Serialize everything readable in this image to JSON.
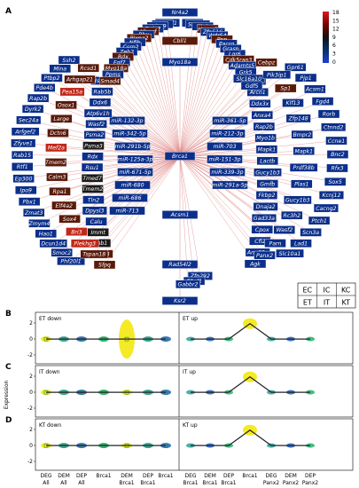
{
  "panel_a": {
    "letter": "A",
    "hub": "Brca1",
    "colorbar": {
      "ticks": [
        "18",
        "15",
        "12",
        "9",
        "6",
        "3",
        "0"
      ],
      "stops": [
        "#d7191c",
        "#7a0000",
        "#111111",
        "#08306b",
        "#1f3fd0"
      ]
    },
    "colors": {
      "blue": "#0b2f8a",
      "navy": "#0c1f50",
      "dark": "#1a1a1a",
      "brown": "#5a1a0a",
      "red": "#c0281a",
      "link": "#d96a6a"
    },
    "spoke_top": [
      "Nr4a2",
      "Cbll1",
      "Myo18a"
    ],
    "spoke_bottom": [
      "Acsm1",
      "Rad54l2",
      "Ksr2"
    ],
    "inner_left": [
      "miR-132-3p",
      "miR-342-5p",
      "miR-291b-5p",
      "miR-125a-3p",
      "miR-671-5p",
      "miR-680",
      "miR-686",
      "miR-713"
    ],
    "inner_right": [
      "miR-361-5p",
      "miR-212-3p",
      "miR-703",
      "miR-151-3p",
      "miR-339-3p",
      "miR-291a-5p"
    ],
    "mid_left": [
      {
        "t": "Hspa12b",
        "c": "blue"
      },
      {
        "t": "Rab5b",
        "c": "blue"
      },
      {
        "t": "Ddx6",
        "c": "blue"
      },
      {
        "t": "Atp6v1h",
        "c": "blue"
      },
      {
        "t": "Wasf2",
        "c": "blue"
      },
      {
        "t": "Psma2",
        "c": "blue"
      },
      {
        "t": "Psma3",
        "c": "dark"
      },
      {
        "t": "Rdx",
        "c": "blue"
      },
      {
        "t": "Rsu1",
        "c": "blue"
      },
      {
        "t": "Tmed7",
        "c": "dark"
      },
      {
        "t": "Tmem2",
        "c": "dark"
      },
      {
        "t": "Tln2",
        "c": "blue"
      },
      {
        "t": "Dpysl3",
        "c": "blue"
      },
      {
        "t": "Calu",
        "c": "blue"
      },
      {
        "t": "Immt",
        "c": "dark"
      },
      {
        "t": "Gnb1",
        "c": "dark"
      },
      {
        "t": "Actr3",
        "c": "brown"
      },
      {
        "t": "Sfpq",
        "c": "brown"
      }
    ],
    "mid_right": [
      {
        "t": "Gpd2",
        "c": "blue"
      },
      {
        "t": "Arcn1",
        "c": "blue"
      },
      {
        "t": "Ddx3x",
        "c": "blue"
      },
      {
        "t": "Anxa4",
        "c": "blue"
      },
      {
        "t": "Rap2b",
        "c": "blue"
      },
      {
        "t": "Myo1b",
        "c": "blue"
      },
      {
        "t": "Mapk1",
        "c": "blue"
      },
      {
        "t": "Lactb",
        "c": "blue"
      },
      {
        "t": "Gucy1b3",
        "c": "blue"
      },
      {
        "t": "Gmfb",
        "c": "blue"
      },
      {
        "t": "Fkbp2",
        "c": "blue"
      },
      {
        "t": "Dnaja2",
        "c": "blue"
      },
      {
        "t": "Gad33a",
        "c": "blue"
      },
      {
        "t": "Cpox",
        "c": "blue"
      },
      {
        "t": "Cfl2",
        "c": "blue"
      },
      {
        "t": "Anp32a",
        "c": "blue"
      },
      {
        "t": "Agk",
        "c": "blue"
      }
    ],
    "top_left_arc": [
      {
        "t": "Tmeff1",
        "c": "blue"
      },
      {
        "t": "Qk",
        "c": "blue"
      },
      {
        "t": "Hdac9",
        "c": "blue"
      },
      {
        "t": "Bnip2",
        "c": "blue"
      },
      {
        "t": "Hbegf",
        "c": "brown"
      },
      {
        "t": "Bbx",
        "c": "blue"
      },
      {
        "t": "Pixna2",
        "c": "brown"
      },
      {
        "t": "Nfib",
        "c": "blue"
      },
      {
        "t": "Csrp2",
        "c": "blue"
      },
      {
        "t": "Zeb2",
        "c": "blue"
      },
      {
        "t": "Rdx",
        "c": "brown"
      },
      {
        "t": "Fgf7",
        "c": "blue"
      },
      {
        "t": "Myo18a",
        "c": "brown"
      },
      {
        "t": "Ppms",
        "c": "blue"
      },
      {
        "t": "Smad4",
        "c": "brown"
      }
    ],
    "top_right_arc": [
      {
        "t": "Erg",
        "c": "blue"
      },
      {
        "t": "Srgap3",
        "c": "blue"
      },
      {
        "t": "Tln2",
        "c": "blue"
      },
      {
        "t": "Hmga2",
        "c": "brown"
      },
      {
        "t": "Zfp516",
        "c": "blue"
      },
      {
        "t": "Wdr54",
        "c": "blue"
      },
      {
        "t": "Pnn",
        "c": "brown"
      },
      {
        "t": "Pacrg",
        "c": "blue"
      },
      {
        "t": "Grasp",
        "c": "blue"
      },
      {
        "t": "Lgr6",
        "c": "blue"
      },
      {
        "t": "Cdk5rap3",
        "c": "brown"
      },
      {
        "t": "Adamts5",
        "c": "blue"
      },
      {
        "t": "Grk5",
        "c": "blue"
      },
      {
        "t": "Slc16a10",
        "c": "blue"
      },
      {
        "t": "Gdf5",
        "c": "blue"
      }
    ],
    "outer_left": [
      {
        "t": "Ssh2",
        "c": "blue"
      },
      {
        "t": "Mina",
        "c": "blue"
      },
      {
        "t": "Ptbp2",
        "c": "blue"
      },
      {
        "t": "Pde4b",
        "c": "blue"
      },
      {
        "t": "Rap2b",
        "c": "blue"
      },
      {
        "t": "Dyrk2",
        "c": "blue"
      },
      {
        "t": "Sec24a",
        "c": "blue"
      },
      {
        "t": "Arfgef2",
        "c": "blue"
      },
      {
        "t": "Zfyve1",
        "c": "blue"
      },
      {
        "t": "Rab15",
        "c": "blue"
      },
      {
        "t": "Rtf1",
        "c": "blue"
      },
      {
        "t": "Ep300",
        "c": "blue"
      },
      {
        "t": "Ipo9",
        "c": "blue"
      },
      {
        "t": "Pbx1",
        "c": "blue"
      },
      {
        "t": "Zmat3",
        "c": "blue"
      },
      {
        "t": "Zmym4",
        "c": "blue"
      },
      {
        "t": "Hao1",
        "c": "blue"
      },
      {
        "t": "Dcun1d4",
        "c": "blue"
      },
      {
        "t": "Smoc2",
        "c": "blue"
      },
      {
        "t": "Phf20l1",
        "c": "blue"
      }
    ],
    "outer_left2": [
      {
        "t": "Rcsd1",
        "c": "brown"
      },
      {
        "t": "Arhgap21",
        "c": "brown"
      },
      {
        "t": "Pea15a",
        "c": "red"
      },
      {
        "t": "Osox1",
        "c": "brown"
      },
      {
        "t": "Large",
        "c": "brown"
      },
      {
        "t": "Dctn6",
        "c": "brown"
      },
      {
        "t": "Mef2a",
        "c": "red"
      },
      {
        "t": "Tmem2",
        "c": "brown"
      },
      {
        "t": "Calm3",
        "c": "brown"
      },
      {
        "t": "Rpa1",
        "c": "brown"
      },
      {
        "t": "Elf4a2",
        "c": "brown"
      },
      {
        "t": "Sox4",
        "c": "brown"
      },
      {
        "t": "Bri3",
        "c": "red"
      },
      {
        "t": "Plekhg3",
        "c": "red"
      },
      {
        "t": "Tspan18",
        "c": "brown"
      }
    ],
    "outer_right": [
      {
        "t": "Gpr61",
        "c": "blue"
      },
      {
        "t": "Pjp1",
        "c": "blue"
      },
      {
        "t": "Acsm1",
        "c": "blue"
      },
      {
        "t": "Fgd4",
        "c": "blue"
      },
      {
        "t": "Rorb",
        "c": "blue"
      },
      {
        "t": "Ctnnd2",
        "c": "blue"
      },
      {
        "t": "Ccne1",
        "c": "blue"
      },
      {
        "t": "Bnc2",
        "c": "blue"
      },
      {
        "t": "Rfx3",
        "c": "blue"
      },
      {
        "t": "Sox5",
        "c": "blue"
      },
      {
        "t": "Kcnj12",
        "c": "blue"
      },
      {
        "t": "Cacng2",
        "c": "blue"
      },
      {
        "t": "Ptch1",
        "c": "blue"
      },
      {
        "t": "Scn3a",
        "c": "blue"
      },
      {
        "t": "Lad1",
        "c": "blue"
      },
      {
        "t": "Slc10a1",
        "c": "blue"
      }
    ],
    "outer_right2": [
      {
        "t": "Cebpz",
        "c": "brown"
      },
      {
        "t": "Pik3ip1",
        "c": "blue"
      },
      {
        "t": "Sp1",
        "c": "brown"
      },
      {
        "t": "Klf13",
        "c": "blue"
      },
      {
        "t": "Zfp148",
        "c": "blue"
      },
      {
        "t": "Bmpr2",
        "c": "blue"
      },
      {
        "t": "Mapk1",
        "c": "blue"
      },
      {
        "t": "Prdf38b",
        "c": "blue"
      },
      {
        "t": "Plas1",
        "c": "blue"
      },
      {
        "t": "Gucy1b3",
        "c": "blue"
      },
      {
        "t": "Rc3h2",
        "c": "blue"
      },
      {
        "t": "Wasf2",
        "c": "blue"
      },
      {
        "t": "Parn",
        "c": "blue"
      },
      {
        "t": "Panx2",
        "c": "blue"
      }
    ],
    "bottom_arc": [
      {
        "t": "Zfp292",
        "c": "blue"
      },
      {
        "t": "C1ql1",
        "c": "blue"
      },
      {
        "t": "Gabbr2",
        "c": "blue"
      }
    ]
  },
  "legend": {
    "top": [
      "EC",
      "IC",
      "KC"
    ],
    "bottom": [
      "ET",
      "IT",
      "KT"
    ]
  },
  "strip_panels": [
    {
      "letter": "B",
      "left_title": "ET down",
      "right_title": "ET up"
    },
    {
      "letter": "C",
      "left_title": "IT down",
      "right_title": "IT up"
    },
    {
      "letter": "D",
      "left_title": "KT down",
      "right_title": "KT up"
    }
  ],
  "y_axis_label": "Expression",
  "x_labels": [
    {
      "top": "DEG",
      "bottom": "All"
    },
    {
      "top": "DEM",
      "bottom": "All"
    },
    {
      "top": "DEP",
      "bottom": "All"
    },
    {
      "top": "Brca1",
      "bottom": ""
    },
    {
      "top": "DEM",
      "bottom": "Brca1"
    },
    {
      "top": "DEP",
      "bottom": "Brca1"
    },
    {
      "top": "Brca1",
      "bottom": ""
    },
    {
      "top": "DEG",
      "bottom": "Brca1"
    },
    {
      "top": "DEM",
      "bottom": "Brca1"
    },
    {
      "top": "DEP",
      "bottom": "Brca1"
    },
    {
      "top": "Brca1",
      "bottom": ""
    },
    {
      "top": "DEG",
      "bottom": "Panx2"
    },
    {
      "top": "DEM",
      "bottom": "Panx2"
    },
    {
      "top": "DEP",
      "bottom": "Panx2"
    }
  ],
  "series_colors": [
    "#f2e600",
    "#2aa198",
    "#1f5fbf",
    "#20b36b"
  ]
}
